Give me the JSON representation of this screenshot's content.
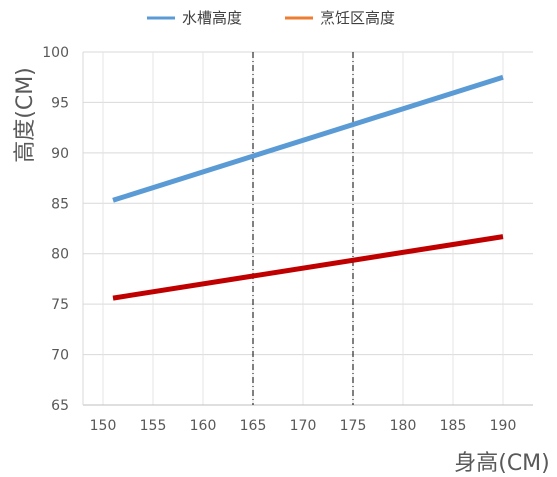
{
  "chart_data": {
    "type": "line",
    "title": "",
    "xlabel": "身高(CM)",
    "ylabel": "高度(CM)",
    "x_ticks": [
      150,
      155,
      160,
      165,
      170,
      175,
      180,
      185,
      190
    ],
    "y_ticks": [
      65,
      70,
      75,
      80,
      85,
      90,
      95,
      100
    ],
    "xlim": [
      148,
      193
    ],
    "ylim": [
      65,
      100
    ],
    "grid": true,
    "legend_position": "top",
    "series": [
      {
        "name": "水槽高度",
        "color": "#5B9BD5",
        "legend_color": "#5B9BD5",
        "x": [
          151,
          190
        ],
        "y": [
          85.3,
          97.5
        ]
      },
      {
        "name": "烹饪区高度",
        "color": "#C00000",
        "legend_color": "#ED7D31",
        "x": [
          151,
          190
        ],
        "y": [
          75.6,
          81.7
        ]
      }
    ],
    "reference_lines": [
      {
        "x": 165,
        "style": "dash-dot",
        "color": "#000000"
      },
      {
        "x": 175,
        "style": "dash-dot",
        "color": "#000000"
      }
    ]
  }
}
